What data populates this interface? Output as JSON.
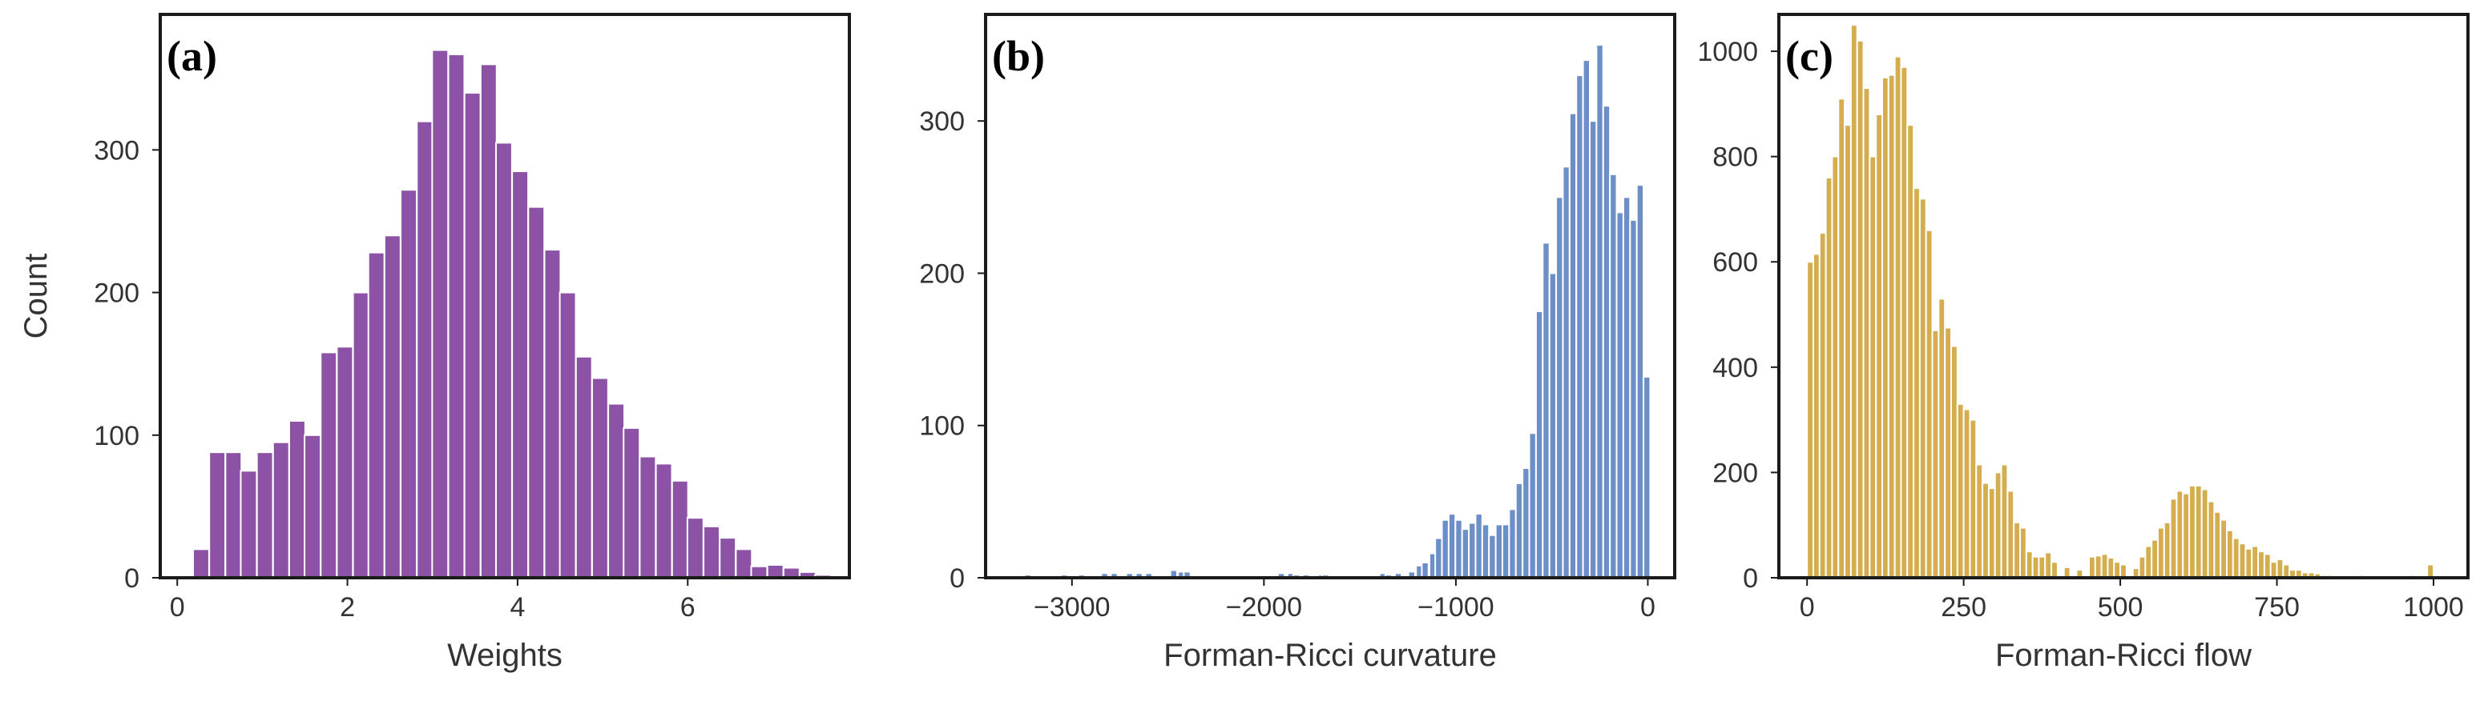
{
  "chart_data": [
    {
      "type": "bar",
      "panel_label": "(a)",
      "xlabel": "Weights",
      "ylabel": "Count",
      "xlim": [
        -0.2,
        7.9
      ],
      "ylim": [
        0,
        395
      ],
      "xticks": [
        0,
        2,
        4,
        6
      ],
      "yticks": [
        0,
        100,
        200,
        300
      ],
      "color": "#8c52a6",
      "bin_width": 0.1875,
      "bins": [
        [
          0.28,
          20
        ],
        [
          0.47,
          88
        ],
        [
          0.66,
          88
        ],
        [
          0.84,
          75
        ],
        [
          1.03,
          88
        ],
        [
          1.22,
          95
        ],
        [
          1.41,
          110
        ],
        [
          1.59,
          100
        ],
        [
          1.78,
          158
        ],
        [
          1.97,
          162
        ],
        [
          2.16,
          200
        ],
        [
          2.34,
          228
        ],
        [
          2.53,
          240
        ],
        [
          2.72,
          272
        ],
        [
          2.91,
          320
        ],
        [
          3.09,
          370
        ],
        [
          3.28,
          367
        ],
        [
          3.47,
          340
        ],
        [
          3.66,
          360
        ],
        [
          3.84,
          305
        ],
        [
          4.03,
          285
        ],
        [
          4.22,
          260
        ],
        [
          4.41,
          230
        ],
        [
          4.59,
          200
        ],
        [
          4.78,
          155
        ],
        [
          4.97,
          140
        ],
        [
          5.16,
          122
        ],
        [
          5.34,
          105
        ],
        [
          5.53,
          85
        ],
        [
          5.72,
          80
        ],
        [
          5.91,
          68
        ],
        [
          6.09,
          42
        ],
        [
          6.28,
          36
        ],
        [
          6.47,
          28
        ],
        [
          6.66,
          20
        ],
        [
          6.84,
          8
        ],
        [
          7.03,
          9
        ],
        [
          7.22,
          7
        ],
        [
          7.41,
          4
        ],
        [
          7.59,
          2
        ]
      ]
    },
    {
      "type": "bar",
      "panel_label": "(b)",
      "xlabel": "Forman-Ricci curvature",
      "ylabel": "",
      "xlim": [
        -3450,
        140
      ],
      "ylim": [
        0,
        370
      ],
      "xticks": [
        -3000,
        -2000,
        -1000,
        0
      ],
      "yticks": [
        0,
        100,
        200,
        300
      ],
      "color": "#6d8fc7",
      "bin_width": 35,
      "bins": [
        [
          -3230,
          2
        ],
        [
          -3040,
          2
        ],
        [
          -2950,
          2
        ],
        [
          -2830,
          3
        ],
        [
          -2780,
          3
        ],
        [
          -2700,
          3
        ],
        [
          -2650,
          3
        ],
        [
          -2600,
          3
        ],
        [
          -2470,
          5
        ],
        [
          -2430,
          4
        ],
        [
          -2400,
          4
        ],
        [
          -1910,
          3
        ],
        [
          -1860,
          3
        ],
        [
          -1830,
          2
        ],
        [
          -1780,
          2
        ],
        [
          -1700,
          2
        ],
        [
          -1680,
          2
        ],
        [
          -1380,
          3
        ],
        [
          -1350,
          2
        ],
        [
          -1300,
          3
        ],
        [
          -1230,
          4
        ],
        [
          -1190,
          8
        ],
        [
          -1160,
          10
        ],
        [
          -1120,
          16
        ],
        [
          -1090,
          26
        ],
        [
          -1055,
          38
        ],
        [
          -1020,
          42
        ],
        [
          -985,
          38
        ],
        [
          -950,
          32
        ],
        [
          -915,
          36
        ],
        [
          -880,
          42
        ],
        [
          -845,
          35
        ],
        [
          -810,
          28
        ],
        [
          -775,
          35
        ],
        [
          -740,
          35
        ],
        [
          -705,
          45
        ],
        [
          -670,
          62
        ],
        [
          -635,
          72
        ],
        [
          -600,
          95
        ],
        [
          -565,
          175
        ],
        [
          -530,
          220
        ],
        [
          -495,
          200
        ],
        [
          -460,
          250
        ],
        [
          -425,
          270
        ],
        [
          -390,
          305
        ],
        [
          -355,
          330
        ],
        [
          -320,
          340
        ],
        [
          -285,
          300
        ],
        [
          -250,
          350
        ],
        [
          -215,
          310
        ],
        [
          -180,
          265
        ],
        [
          -145,
          240
        ],
        [
          -110,
          250
        ],
        [
          -75,
          235
        ],
        [
          -40,
          258
        ],
        [
          -5,
          132
        ]
      ]
    },
    {
      "type": "bar",
      "panel_label": "(c)",
      "xlabel": "Forman-Ricci flow",
      "ylabel": "",
      "xlim": [
        -45,
        1055
      ],
      "ylim": [
        0,
        1070
      ],
      "xticks": [
        0,
        250,
        500,
        750,
        1000
      ],
      "yticks": [
        0,
        200,
        400,
        600,
        800,
        1000
      ],
      "color": "#d4ad4e",
      "bin_width": 10,
      "bins": [
        [
          5,
          600
        ],
        [
          15,
          615
        ],
        [
          25,
          655
        ],
        [
          35,
          760
        ],
        [
          45,
          800
        ],
        [
          55,
          910
        ],
        [
          65,
          860
        ],
        [
          75,
          1050
        ],
        [
          85,
          1020
        ],
        [
          95,
          930
        ],
        [
          105,
          800
        ],
        [
          115,
          880
        ],
        [
          125,
          950
        ],
        [
          135,
          955
        ],
        [
          145,
          990
        ],
        [
          155,
          970
        ],
        [
          165,
          860
        ],
        [
          175,
          740
        ],
        [
          185,
          720
        ],
        [
          195,
          660
        ],
        [
          205,
          470
        ],
        [
          215,
          530
        ],
        [
          225,
          475
        ],
        [
          235,
          440
        ],
        [
          245,
          330
        ],
        [
          255,
          320
        ],
        [
          265,
          300
        ],
        [
          275,
          215
        ],
        [
          285,
          180
        ],
        [
          295,
          170
        ],
        [
          305,
          200
        ],
        [
          315,
          215
        ],
        [
          325,
          165
        ],
        [
          335,
          105
        ],
        [
          345,
          95
        ],
        [
          355,
          50
        ],
        [
          365,
          40
        ],
        [
          375,
          40
        ],
        [
          385,
          48
        ],
        [
          395,
          30
        ],
        [
          415,
          20
        ],
        [
          435,
          15
        ],
        [
          455,
          40
        ],
        [
          465,
          42
        ],
        [
          475,
          45
        ],
        [
          485,
          38
        ],
        [
          495,
          30
        ],
        [
          505,
          25
        ],
        [
          525,
          18
        ],
        [
          535,
          40
        ],
        [
          545,
          60
        ],
        [
          555,
          72
        ],
        [
          565,
          95
        ],
        [
          575,
          105
        ],
        [
          585,
          150
        ],
        [
          595,
          165
        ],
        [
          605,
          160
        ],
        [
          615,
          175
        ],
        [
          625,
          175
        ],
        [
          635,
          168
        ],
        [
          645,
          145
        ],
        [
          655,
          125
        ],
        [
          665,
          110
        ],
        [
          675,
          90
        ],
        [
          685,
          75
        ],
        [
          695,
          65
        ],
        [
          705,
          55
        ],
        [
          715,
          60
        ],
        [
          725,
          50
        ],
        [
          735,
          45
        ],
        [
          745,
          30
        ],
        [
          755,
          35
        ],
        [
          765,
          25
        ],
        [
          775,
          15
        ],
        [
          785,
          15
        ],
        [
          795,
          10
        ],
        [
          805,
          10
        ],
        [
          815,
          8
        ],
        [
          825,
          5
        ],
        [
          835,
          5
        ],
        [
          845,
          4
        ],
        [
          885,
          5
        ],
        [
          965,
          5
        ],
        [
          995,
          25
        ]
      ]
    }
  ]
}
